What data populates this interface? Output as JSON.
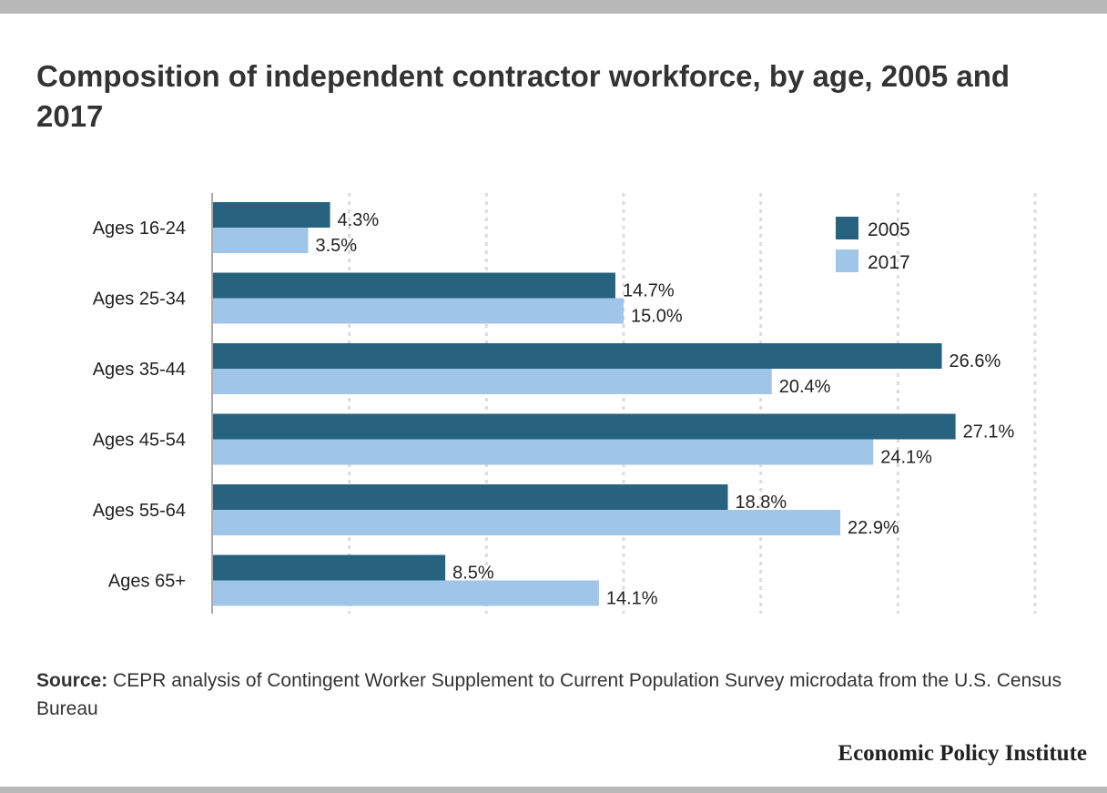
{
  "chart_data": {
    "type": "bar",
    "orientation": "horizontal",
    "title": "Composition of independent contractor workforce, by age, 2005 and 2017",
    "categories": [
      "Ages 16-24",
      "Ages 25-34",
      "Ages 35-44",
      "Ages 45-54",
      "Ages 55-64",
      "Ages 65+"
    ],
    "series": [
      {
        "name": "2005",
        "color": "#27627f",
        "values": [
          4.3,
          14.7,
          26.6,
          27.1,
          18.8,
          8.5
        ],
        "labels": [
          "4.3%",
          "14.7%",
          "26.6%",
          "27.1%",
          "18.8%",
          "8.5%"
        ]
      },
      {
        "name": "2017",
        "color": "#9fc6e8",
        "values": [
          3.5,
          15.0,
          20.4,
          24.1,
          22.9,
          14.1
        ],
        "labels": [
          "3.5%",
          "15.0%",
          "20.4%",
          "24.1%",
          "22.9%",
          "14.1%"
        ]
      }
    ],
    "xlim": [
      0,
      30
    ],
    "grid": true,
    "legend": "top-right"
  },
  "source": {
    "label": "Source:",
    "text": " CEPR analysis of Contingent Worker Supplement to Current Population Survey microdata from the U.S. Census Bureau"
  },
  "brand": "Economic Policy Institute"
}
